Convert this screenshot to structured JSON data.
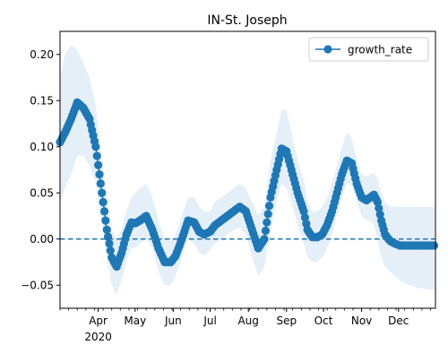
{
  "chart_data": {
    "type": "line",
    "title": "IN-St. Joseph",
    "xlabel": "",
    "ylabel": "",
    "legend_position": "top-right",
    "grid": false,
    "xlim": [
      "2020-03-01",
      "2020-12-31"
    ],
    "ylim": [
      -0.075,
      0.225
    ],
    "yticks": [
      -0.05,
      0.0,
      0.05,
      0.1,
      0.15,
      0.2
    ],
    "ytick_labels": [
      "−0.05",
      "0.00",
      "0.05",
      "0.10",
      "0.15",
      "0.20"
    ],
    "xticks": [
      {
        "date": "2020-04-01",
        "label": "Apr"
      },
      {
        "date": "2020-05-01",
        "label": "May"
      },
      {
        "date": "2020-06-01",
        "label": "Jun"
      },
      {
        "date": "2020-07-01",
        "label": "Jul"
      },
      {
        "date": "2020-08-01",
        "label": "Aug"
      },
      {
        "date": "2020-09-01",
        "label": "Sep"
      },
      {
        "date": "2020-10-01",
        "label": "Oct"
      },
      {
        "date": "2020-11-01",
        "label": "Nov"
      },
      {
        "date": "2020-12-01",
        "label": "Dec"
      }
    ],
    "year_label": "2020",
    "reference_line": {
      "y": 0.0,
      "style": "dashed",
      "color": "#1f77b4"
    },
    "colors": {
      "line": "#1f77b4",
      "band": "#dbe9f6"
    },
    "series": [
      {
        "name": "growth_rate",
        "x": [
          "2020-03-01",
          "2020-03-05",
          "2020-03-10",
          "2020-03-15",
          "2020-03-20",
          "2020-03-25",
          "2020-03-30",
          "2020-04-02",
          "2020-04-05",
          "2020-04-08",
          "2020-04-12",
          "2020-04-16",
          "2020-04-20",
          "2020-04-24",
          "2020-04-28",
          "2020-05-01",
          "2020-05-05",
          "2020-05-10",
          "2020-05-15",
          "2020-05-20",
          "2020-05-25",
          "2020-05-30",
          "2020-06-03",
          "2020-06-08",
          "2020-06-13",
          "2020-06-18",
          "2020-06-22",
          "2020-06-26",
          "2020-07-01",
          "2020-07-05",
          "2020-07-10",
          "2020-07-15",
          "2020-07-20",
          "2020-07-25",
          "2020-07-30",
          "2020-08-04",
          "2020-08-09",
          "2020-08-14",
          "2020-08-19",
          "2020-08-24",
          "2020-08-28",
          "2020-09-01",
          "2020-09-05",
          "2020-09-10",
          "2020-09-15",
          "2020-09-18",
          "2020-09-22",
          "2020-09-26",
          "2020-09-30",
          "2020-10-04",
          "2020-10-08",
          "2020-10-12",
          "2020-10-16",
          "2020-10-20",
          "2020-10-24",
          "2020-10-28",
          "2020-11-01",
          "2020-11-05",
          "2020-11-08",
          "2020-11-11",
          "2020-11-14",
          "2020-11-17",
          "2020-11-20",
          "2020-11-24",
          "2020-11-28",
          "2020-12-02",
          "2020-12-06",
          "2020-12-10",
          "2020-12-14",
          "2020-12-18",
          "2020-12-22",
          "2020-12-26",
          "2020-12-30"
        ],
        "values": [
          0.105,
          0.115,
          0.13,
          0.148,
          0.142,
          0.13,
          0.1,
          0.07,
          0.04,
          0.01,
          -0.02,
          -0.03,
          -0.015,
          0.005,
          0.018,
          0.017,
          0.02,
          0.025,
          0.01,
          -0.01,
          -0.025,
          -0.025,
          -0.018,
          0.0,
          0.02,
          0.018,
          0.008,
          0.005,
          0.008,
          0.015,
          0.02,
          0.025,
          0.03,
          0.035,
          0.03,
          0.01,
          -0.01,
          0.0,
          0.045,
          0.075,
          0.098,
          0.095,
          0.075,
          0.05,
          0.03,
          0.01,
          0.002,
          0.002,
          0.005,
          0.015,
          0.03,
          0.05,
          0.07,
          0.085,
          0.082,
          0.06,
          0.045,
          0.042,
          0.045,
          0.048,
          0.04,
          0.02,
          0.005,
          -0.002,
          -0.005,
          -0.007,
          -0.007,
          -0.007,
          -0.007,
          -0.007,
          -0.007,
          -0.007,
          -0.007
        ],
        "lower": [
          0.04,
          0.055,
          0.07,
          0.09,
          0.09,
          0.08,
          0.06,
          0.035,
          0.01,
          -0.02,
          -0.05,
          -0.06,
          -0.045,
          -0.025,
          -0.01,
          -0.01,
          -0.005,
          0.0,
          -0.01,
          -0.035,
          -0.05,
          -0.05,
          -0.04,
          -0.02,
          0.0,
          -0.005,
          -0.015,
          -0.018,
          -0.012,
          -0.005,
          0.0,
          0.005,
          0.01,
          0.012,
          0.005,
          -0.02,
          -0.04,
          -0.03,
          0.01,
          0.04,
          0.06,
          0.055,
          0.04,
          0.015,
          -0.005,
          -0.02,
          -0.025,
          -0.025,
          -0.02,
          -0.01,
          0.005,
          0.025,
          0.045,
          0.06,
          0.058,
          0.04,
          0.025,
          0.02,
          0.02,
          0.015,
          0.0,
          -0.02,
          -0.03,
          -0.035,
          -0.04,
          -0.045,
          -0.048,
          -0.05,
          -0.052,
          -0.053,
          -0.054,
          -0.055,
          -0.055
        ],
        "upper": [
          0.175,
          0.2,
          0.21,
          0.205,
          0.19,
          0.175,
          0.145,
          0.11,
          0.075,
          0.045,
          0.01,
          0.0,
          0.01,
          0.03,
          0.045,
          0.05,
          0.055,
          0.06,
          0.045,
          0.02,
          0.0,
          -0.002,
          0.005,
          0.025,
          0.045,
          0.045,
          0.035,
          0.03,
          0.03,
          0.04,
          0.045,
          0.05,
          0.055,
          0.06,
          0.055,
          0.04,
          0.025,
          0.035,
          0.085,
          0.115,
          0.14,
          0.14,
          0.115,
          0.085,
          0.065,
          0.04,
          0.03,
          0.03,
          0.035,
          0.045,
          0.06,
          0.08,
          0.1,
          0.115,
          0.11,
          0.085,
          0.07,
          0.068,
          0.07,
          0.072,
          0.065,
          0.05,
          0.04,
          0.035,
          0.035,
          0.035,
          0.035,
          0.035,
          0.035,
          0.035,
          0.035,
          0.035,
          0.035
        ]
      }
    ]
  }
}
